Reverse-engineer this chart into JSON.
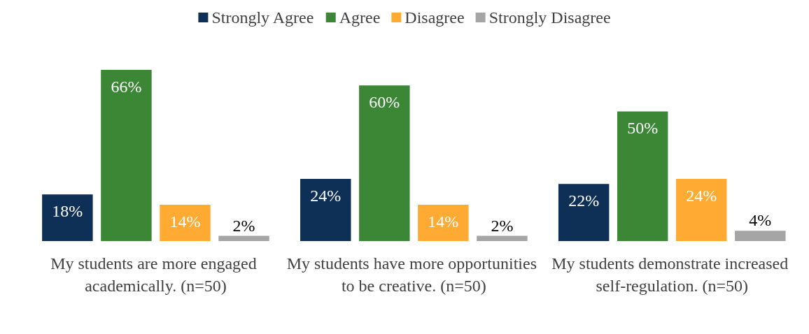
{
  "chart_data": {
    "type": "bar",
    "categories": [
      "My students are more engaged academically. (n=50)",
      "My students have more opportunities to be creative. (n=50)",
      "My students demonstrate increased self-regulation. (n=50)"
    ],
    "series": [
      {
        "name": "Strongly Agree",
        "color": "#0e2f56",
        "values": [
          18,
          24,
          22
        ],
        "value_labels": [
          "18%",
          "24%",
          "22%"
        ]
      },
      {
        "name": "Agree",
        "color": "#3b8736",
        "values": [
          66,
          60,
          50
        ],
        "value_labels": [
          "66%",
          "60%",
          "50%"
        ]
      },
      {
        "name": "Disagree",
        "color": "#ffaa33",
        "values": [
          14,
          14,
          24
        ],
        "value_labels": [
          "14%",
          "14%",
          "24%"
        ]
      },
      {
        "name": "Strongly Disagree",
        "color": "#a5a5a6",
        "values": [
          2,
          2,
          4
        ],
        "value_labels": [
          "2%",
          "2%",
          "4%"
        ]
      }
    ],
    "legend": "top"
  }
}
